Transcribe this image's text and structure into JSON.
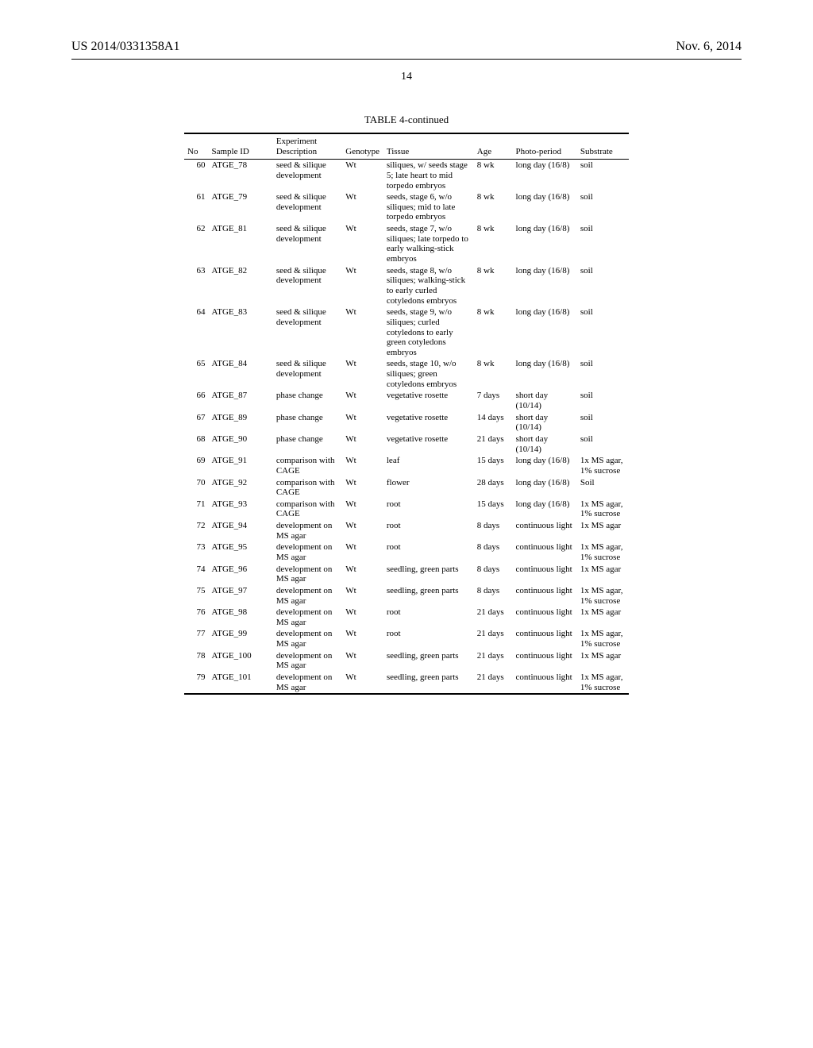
{
  "header": {
    "doc_number": "US 2014/0331358A1",
    "date": "Nov. 6, 2014",
    "page_number": "14"
  },
  "table": {
    "caption": "TABLE 4-continued",
    "columns": [
      "No",
      "Sample ID",
      "Experiment Description",
      "Genotype",
      "Tissue",
      "Age",
      "Photo-period",
      "Substrate"
    ],
    "rows": [
      {
        "no": "60",
        "sample": "ATGE_78",
        "desc": "seed & silique development",
        "geno": "Wt",
        "tissue": "siliques, w/ seeds stage 5; late heart to mid torpedo embryos",
        "age": "8 wk",
        "photo": "long day (16/8)",
        "sub": "soil"
      },
      {
        "no": "61",
        "sample": "ATGE_79",
        "desc": "seed & silique development",
        "geno": "Wt",
        "tissue": "seeds, stage 6, w/o siliques; mid to late torpedo embryos",
        "age": "8 wk",
        "photo": "long day (16/8)",
        "sub": "soil"
      },
      {
        "no": "62",
        "sample": "ATGE_81",
        "desc": "seed & silique development",
        "geno": "Wt",
        "tissue": "seeds, stage 7, w/o siliques; late torpedo to early walking-stick embryos",
        "age": "8 wk",
        "photo": "long day (16/8)",
        "sub": "soil"
      },
      {
        "no": "63",
        "sample": "ATGE_82",
        "desc": "seed & silique development",
        "geno": "Wt",
        "tissue": "seeds, stage 8, w/o siliques; walking-stick to early curled cotyledons embryos",
        "age": "8 wk",
        "photo": "long day (16/8)",
        "sub": "soil"
      },
      {
        "no": "64",
        "sample": "ATGE_83",
        "desc": "seed & silique development",
        "geno": "Wt",
        "tissue": "seeds, stage 9, w/o siliques; curled cotyledons to early green cotyledons embryos",
        "age": "8 wk",
        "photo": "long day (16/8)",
        "sub": "soil"
      },
      {
        "no": "65",
        "sample": "ATGE_84",
        "desc": "seed & silique development",
        "geno": "Wt",
        "tissue": "seeds, stage 10, w/o siliques; green cotyledons embryos",
        "age": "8 wk",
        "photo": "long day (16/8)",
        "sub": "soil"
      },
      {
        "no": "66",
        "sample": "ATGE_87",
        "desc": "phase change",
        "geno": "Wt",
        "tissue": "vegetative rosette",
        "age": "7 days",
        "photo": "short day (10/14)",
        "sub": "soil"
      },
      {
        "no": "67",
        "sample": "ATGE_89",
        "desc": "phase change",
        "geno": "Wt",
        "tissue": "vegetative rosette",
        "age": "14 days",
        "photo": "short day (10/14)",
        "sub": "soil"
      },
      {
        "no": "68",
        "sample": "ATGE_90",
        "desc": "phase change",
        "geno": "Wt",
        "tissue": "vegetative rosette",
        "age": "21 days",
        "photo": "short day (10/14)",
        "sub": "soil"
      },
      {
        "no": "69",
        "sample": "ATGE_91",
        "desc": "comparison with CAGE",
        "geno": "Wt",
        "tissue": "leaf",
        "age": "15 days",
        "photo": "long day (16/8)",
        "sub": "1x MS agar, 1% sucrose"
      },
      {
        "no": "70",
        "sample": "ATGE_92",
        "desc": "comparison with CAGE",
        "geno": "Wt",
        "tissue": "flower",
        "age": "28 days",
        "photo": "long day (16/8)",
        "sub": "Soil"
      },
      {
        "no": "71",
        "sample": "ATGE_93",
        "desc": "comparison with CAGE",
        "geno": "Wt",
        "tissue": "root",
        "age": "15 days",
        "photo": "long day (16/8)",
        "sub": "1x MS agar, 1% sucrose"
      },
      {
        "no": "72",
        "sample": "ATGE_94",
        "desc": "development on MS agar",
        "geno": "Wt",
        "tissue": "root",
        "age": "8 days",
        "photo": "continuous light",
        "sub": "1x MS agar"
      },
      {
        "no": "73",
        "sample": "ATGE_95",
        "desc": "development on MS agar",
        "geno": "Wt",
        "tissue": "root",
        "age": "8 days",
        "photo": "continuous light",
        "sub": "1x MS agar, 1% sucrose"
      },
      {
        "no": "74",
        "sample": "ATGE_96",
        "desc": "development on MS agar",
        "geno": "Wt",
        "tissue": "seedling, green parts",
        "age": "8 days",
        "photo": "continuous light",
        "sub": "1x MS agar"
      },
      {
        "no": "75",
        "sample": "ATGE_97",
        "desc": "development on MS agar",
        "geno": "Wt",
        "tissue": "seedling, green parts",
        "age": "8 days",
        "photo": "continuous light",
        "sub": "1x MS agar, 1% sucrose"
      },
      {
        "no": "76",
        "sample": "ATGE_98",
        "desc": "development on MS agar",
        "geno": "Wt",
        "tissue": "root",
        "age": "21 days",
        "photo": "continuous light",
        "sub": "1x MS agar"
      },
      {
        "no": "77",
        "sample": "ATGE_99",
        "desc": "development on MS agar",
        "geno": "Wt",
        "tissue": "root",
        "age": "21 days",
        "photo": "continuous light",
        "sub": "1x MS agar, 1% sucrose"
      },
      {
        "no": "78",
        "sample": "ATGE_100",
        "desc": "development on MS agar",
        "geno": "Wt",
        "tissue": "seedling, green parts",
        "age": "21 days",
        "photo": "continuous light",
        "sub": "1x MS agar"
      },
      {
        "no": "79",
        "sample": "ATGE_101",
        "desc": "development on MS agar",
        "geno": "Wt",
        "tissue": "seedling, green parts",
        "age": "21 days",
        "photo": "continuous light",
        "sub": "1x MS agar, 1% sucrose"
      }
    ]
  }
}
